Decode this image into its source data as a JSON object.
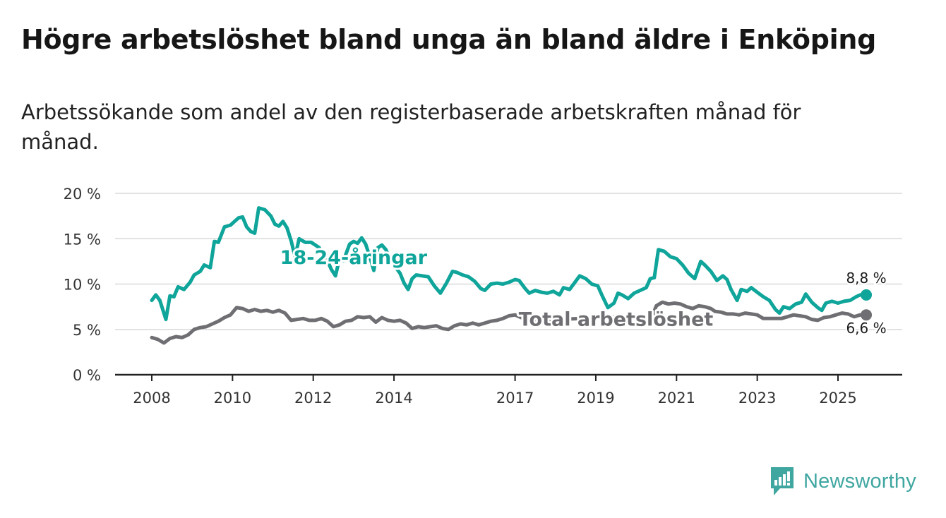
{
  "title": "Högre arbetslöshet bland unga än bland äldre i Enköping",
  "subtitle": "Arbetssökande som andel av den registerbaserade arbetskraften månad för månad.",
  "brand": "Newsworthy",
  "colors": {
    "youth": "#0fa59a",
    "total": "#6f6f73",
    "grid": "#d9d9d9",
    "axis": "#222222"
  },
  "chart_data": {
    "type": "line",
    "ylim": [
      0,
      20
    ],
    "yticks": [
      0,
      5,
      10,
      15,
      20
    ],
    "ytick_labels": [
      "0 %",
      "5 %",
      "10 %",
      "15 %",
      "20 %"
    ],
    "xlim": [
      2008.0,
      2026.0
    ],
    "xticks": [
      2008,
      2010,
      2012,
      2014,
      2017,
      2019,
      2021,
      2023,
      2025
    ],
    "xtick_labels": [
      "2008",
      "2010",
      "2012",
      "2014",
      "2017",
      "2019",
      "2021",
      "2023",
      "2025"
    ],
    "series": [
      {
        "name": "18-24-åringar",
        "color": "#0fa59a",
        "points": [
          [
            2008.0,
            8.2
          ],
          [
            2008.1,
            8.8
          ],
          [
            2008.2,
            8.2
          ],
          [
            2008.35,
            6.1
          ],
          [
            2008.45,
            8.7
          ],
          [
            2008.55,
            8.6
          ],
          [
            2008.65,
            9.7
          ],
          [
            2008.8,
            9.4
          ],
          [
            2008.95,
            10.2
          ],
          [
            2009.05,
            11.0
          ],
          [
            2009.2,
            11.4
          ],
          [
            2009.3,
            12.1
          ],
          [
            2009.45,
            11.8
          ],
          [
            2009.55,
            14.7
          ],
          [
            2009.65,
            14.6
          ],
          [
            2009.8,
            16.3
          ],
          [
            2009.95,
            16.5
          ],
          [
            2010.05,
            16.9
          ],
          [
            2010.15,
            17.3
          ],
          [
            2010.25,
            17.4
          ],
          [
            2010.35,
            16.3
          ],
          [
            2010.45,
            15.8
          ],
          [
            2010.55,
            15.6
          ],
          [
            2010.65,
            18.4
          ],
          [
            2010.8,
            18.2
          ],
          [
            2010.95,
            17.5
          ],
          [
            2011.05,
            16.6
          ],
          [
            2011.15,
            16.4
          ],
          [
            2011.25,
            16.9
          ],
          [
            2011.35,
            16.2
          ],
          [
            2011.45,
            14.8
          ],
          [
            2011.55,
            13.0
          ],
          [
            2011.65,
            15.0
          ],
          [
            2011.8,
            14.6
          ],
          [
            2011.95,
            14.6
          ],
          [
            2012.05,
            14.3
          ],
          [
            2012.15,
            14.0
          ],
          [
            2012.25,
            13.0
          ],
          [
            2012.35,
            12.6
          ],
          [
            2012.45,
            11.6
          ],
          [
            2012.55,
            10.9
          ],
          [
            2012.65,
            12.8
          ],
          [
            2012.75,
            12.6
          ],
          [
            2012.9,
            14.4
          ],
          [
            2013.0,
            14.7
          ],
          [
            2013.1,
            14.5
          ],
          [
            2013.2,
            15.1
          ],
          [
            2013.3,
            14.4
          ],
          [
            2013.4,
            13.0
          ],
          [
            2013.5,
            11.5
          ],
          [
            2013.6,
            14.0
          ],
          [
            2013.7,
            14.3
          ],
          [
            2013.8,
            13.8
          ],
          [
            2013.95,
            12.3
          ],
          [
            2014.05,
            11.8
          ],
          [
            2014.15,
            11.2
          ],
          [
            2014.25,
            10.1
          ],
          [
            2014.35,
            9.4
          ],
          [
            2014.45,
            10.6
          ],
          [
            2014.55,
            11.0
          ],
          [
            2014.7,
            10.9
          ],
          [
            2014.85,
            10.8
          ],
          [
            2015.0,
            9.8
          ],
          [
            2015.15,
            9.0
          ],
          [
            2015.3,
            10.1
          ],
          [
            2015.45,
            11.4
          ],
          [
            2015.55,
            11.3
          ],
          [
            2015.7,
            11.0
          ],
          [
            2015.85,
            10.8
          ],
          [
            2016.0,
            10.3
          ],
          [
            2016.15,
            9.5
          ],
          [
            2016.25,
            9.3
          ],
          [
            2016.4,
            10.0
          ],
          [
            2016.55,
            10.1
          ],
          [
            2016.7,
            10.0
          ],
          [
            2016.85,
            10.2
          ],
          [
            2017.0,
            10.5
          ],
          [
            2017.1,
            10.4
          ],
          [
            2017.25,
            9.5
          ],
          [
            2017.35,
            9.0
          ],
          [
            2017.5,
            9.3
          ],
          [
            2017.65,
            9.1
          ],
          [
            2017.8,
            9.0
          ],
          [
            2017.95,
            9.2
          ],
          [
            2018.1,
            8.8
          ],
          [
            2018.2,
            9.6
          ],
          [
            2018.35,
            9.4
          ],
          [
            2018.5,
            10.3
          ],
          [
            2018.6,
            10.9
          ],
          [
            2018.75,
            10.6
          ],
          [
            2018.9,
            10.0
          ],
          [
            2019.05,
            9.8
          ],
          [
            2019.15,
            8.8
          ],
          [
            2019.3,
            7.4
          ],
          [
            2019.45,
            7.9
          ],
          [
            2019.55,
            9.0
          ],
          [
            2019.65,
            8.8
          ],
          [
            2019.8,
            8.4
          ],
          [
            2019.95,
            9.0
          ],
          [
            2020.1,
            9.3
          ],
          [
            2020.25,
            9.6
          ],
          [
            2020.35,
            10.6
          ],
          [
            2020.45,
            10.7
          ],
          [
            2020.55,
            13.8
          ],
          [
            2020.7,
            13.6
          ],
          [
            2020.85,
            13.0
          ],
          [
            2021.0,
            12.8
          ],
          [
            2021.15,
            12.1
          ],
          [
            2021.3,
            11.2
          ],
          [
            2021.45,
            10.6
          ],
          [
            2021.6,
            12.5
          ],
          [
            2021.7,
            12.1
          ],
          [
            2021.85,
            11.4
          ],
          [
            2022.0,
            10.4
          ],
          [
            2022.15,
            10.9
          ],
          [
            2022.25,
            10.5
          ],
          [
            2022.35,
            9.4
          ],
          [
            2022.5,
            8.2
          ],
          [
            2022.6,
            9.4
          ],
          [
            2022.75,
            9.2
          ],
          [
            2022.85,
            9.6
          ],
          [
            2023.0,
            9.1
          ],
          [
            2023.15,
            8.6
          ],
          [
            2023.3,
            8.2
          ],
          [
            2023.45,
            7.2
          ],
          [
            2023.55,
            6.8
          ],
          [
            2023.65,
            7.5
          ],
          [
            2023.8,
            7.3
          ],
          [
            2023.95,
            7.8
          ],
          [
            2024.1,
            8.0
          ],
          [
            2024.2,
            8.9
          ],
          [
            2024.35,
            8.0
          ],
          [
            2024.5,
            7.4
          ],
          [
            2024.6,
            7.1
          ],
          [
            2024.7,
            7.9
          ],
          [
            2024.85,
            8.1
          ],
          [
            2025.0,
            7.9
          ],
          [
            2025.15,
            8.1
          ],
          [
            2025.3,
            8.2
          ],
          [
            2025.45,
            8.6
          ],
          [
            2025.55,
            8.8
          ],
          [
            2025.7,
            8.8
          ]
        ]
      },
      {
        "name": "Total arbetslöshet",
        "color": "#6f6f73",
        "points": [
          [
            2008.0,
            4.1
          ],
          [
            2008.15,
            3.9
          ],
          [
            2008.3,
            3.5
          ],
          [
            2008.45,
            4.0
          ],
          [
            2008.6,
            4.2
          ],
          [
            2008.75,
            4.1
          ],
          [
            2008.9,
            4.4
          ],
          [
            2009.05,
            5.0
          ],
          [
            2009.2,
            5.2
          ],
          [
            2009.35,
            5.3
          ],
          [
            2009.5,
            5.6
          ],
          [
            2009.65,
            5.9
          ],
          [
            2009.8,
            6.3
          ],
          [
            2009.95,
            6.6
          ],
          [
            2010.1,
            7.4
          ],
          [
            2010.25,
            7.3
          ],
          [
            2010.4,
            7.0
          ],
          [
            2010.55,
            7.2
          ],
          [
            2010.7,
            7.0
          ],
          [
            2010.85,
            7.1
          ],
          [
            2011.0,
            6.9
          ],
          [
            2011.15,
            7.1
          ],
          [
            2011.3,
            6.8
          ],
          [
            2011.45,
            6.0
          ],
          [
            2011.6,
            6.1
          ],
          [
            2011.75,
            6.2
          ],
          [
            2011.9,
            6.0
          ],
          [
            2012.05,
            6.0
          ],
          [
            2012.2,
            6.2
          ],
          [
            2012.35,
            5.9
          ],
          [
            2012.5,
            5.3
          ],
          [
            2012.65,
            5.5
          ],
          [
            2012.8,
            5.9
          ],
          [
            2012.95,
            6.0
          ],
          [
            2013.1,
            6.4
          ],
          [
            2013.25,
            6.3
          ],
          [
            2013.4,
            6.4
          ],
          [
            2013.55,
            5.8
          ],
          [
            2013.7,
            6.3
          ],
          [
            2013.85,
            6.0
          ],
          [
            2014.0,
            5.9
          ],
          [
            2014.15,
            6.0
          ],
          [
            2014.3,
            5.7
          ],
          [
            2014.45,
            5.1
          ],
          [
            2014.6,
            5.3
          ],
          [
            2014.75,
            5.2
          ],
          [
            2014.9,
            5.3
          ],
          [
            2015.05,
            5.4
          ],
          [
            2015.2,
            5.1
          ],
          [
            2015.35,
            5.0
          ],
          [
            2015.5,
            5.4
          ],
          [
            2015.65,
            5.6
          ],
          [
            2015.8,
            5.5
          ],
          [
            2015.95,
            5.7
          ],
          [
            2016.1,
            5.5
          ],
          [
            2016.25,
            5.7
          ],
          [
            2016.4,
            5.9
          ],
          [
            2016.55,
            6.0
          ],
          [
            2016.7,
            6.2
          ],
          [
            2016.85,
            6.5
          ],
          [
            2017.0,
            6.6
          ],
          [
            2017.15,
            6.3
          ],
          [
            2017.3,
            6.1
          ],
          [
            2017.45,
            6.0
          ],
          [
            2020.4,
            6.5
          ],
          [
            2020.5,
            7.6
          ],
          [
            2020.65,
            8.0
          ],
          [
            2020.8,
            7.8
          ],
          [
            2020.95,
            7.9
          ],
          [
            2021.1,
            7.8
          ],
          [
            2021.25,
            7.5
          ],
          [
            2021.4,
            7.3
          ],
          [
            2021.55,
            7.6
          ],
          [
            2021.7,
            7.5
          ],
          [
            2021.85,
            7.3
          ],
          [
            2021.95,
            7.0
          ],
          [
            2022.1,
            6.9
          ],
          [
            2022.25,
            6.7
          ],
          [
            2022.4,
            6.7
          ],
          [
            2022.55,
            6.6
          ],
          [
            2022.7,
            6.8
          ],
          [
            2022.85,
            6.7
          ],
          [
            2023.0,
            6.6
          ],
          [
            2023.15,
            6.2
          ],
          [
            2023.3,
            6.2
          ],
          [
            2023.45,
            6.2
          ],
          [
            2023.6,
            6.2
          ],
          [
            2023.75,
            6.4
          ],
          [
            2023.9,
            6.6
          ],
          [
            2024.05,
            6.5
          ],
          [
            2024.2,
            6.4
          ],
          [
            2024.35,
            6.1
          ],
          [
            2024.5,
            6.0
          ],
          [
            2024.65,
            6.3
          ],
          [
            2024.8,
            6.4
          ],
          [
            2024.95,
            6.6
          ],
          [
            2025.1,
            6.8
          ],
          [
            2025.25,
            6.7
          ],
          [
            2025.4,
            6.4
          ],
          [
            2025.55,
            6.6
          ],
          [
            2025.7,
            6.6
          ]
        ]
      }
    ],
    "annotations": [
      {
        "text": "18-24-åringar",
        "series": 0,
        "x": 2013.0,
        "y": 12.9
      },
      {
        "text": "Total arbetslöshet",
        "series": 1,
        "x": 2019.5,
        "y": 6.1
      },
      {
        "text": "8,8 %",
        "series": 0,
        "x": 2025.7,
        "y": 8.8
      },
      {
        "text": "6,6 %",
        "series": 1,
        "x": 2025.7,
        "y": 6.6
      }
    ]
  }
}
